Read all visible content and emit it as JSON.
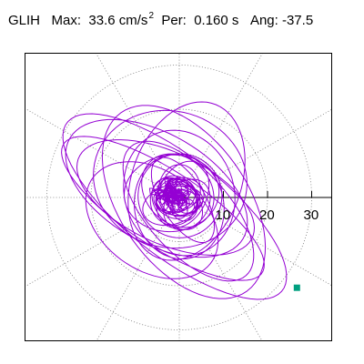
{
  "header": {
    "station": "GLIH",
    "max_label": "Max:",
    "max_value": "33.6",
    "max_unit": "cm/s",
    "max_exp": "2",
    "per_label": "Per:",
    "per_value": "0.160 s",
    "ang_label": "Ang:",
    "ang_value": "-37.5"
  },
  "plot": {
    "grid_style": "dotted",
    "trace_color": "#9400d3",
    "end_marker_color": "#00a080",
    "radial_ticks": [
      "10",
      "20",
      "30"
    ],
    "radial_tick_values": [
      10,
      20,
      30
    ],
    "rotation_deg": -37.5,
    "max_amplitude": 33.6
  }
}
